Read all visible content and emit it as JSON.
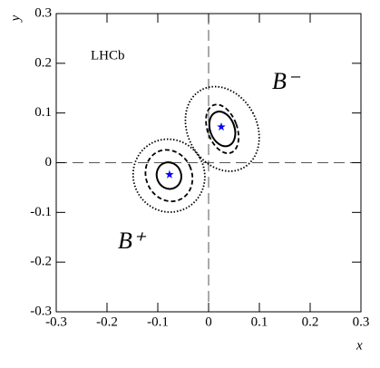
{
  "chart_data": {
    "type": "contour",
    "xlabel": "x",
    "ylabel": "y",
    "xlim": [
      -0.3,
      0.3
    ],
    "ylim": [
      -0.3,
      0.3
    ],
    "xticks": [
      -0.3,
      -0.2,
      -0.1,
      0,
      0.1,
      0.2,
      0.3
    ],
    "yticks": [
      -0.3,
      -0.2,
      -0.1,
      0,
      0.1,
      0.2,
      0.3
    ],
    "annotation": "LHCb",
    "series": [
      {
        "name": "B⁻",
        "color": "#0000ff",
        "x": 0.025,
        "y": 0.072,
        "contours": [
          {
            "style": "solid",
            "x": 0.027,
            "y": 0.068,
            "rx": 0.024,
            "ry": 0.036,
            "angle": -20
          },
          {
            "style": "dashed",
            "x": 0.027,
            "y": 0.068,
            "rx": 0.029,
            "ry": 0.051,
            "angle": -20
          },
          {
            "style": "dotted",
            "x": 0.027,
            "y": 0.068,
            "rx": 0.068,
            "ry": 0.089,
            "angle": -28
          }
        ]
      },
      {
        "name": "B⁺",
        "color": "#0000ff",
        "x": -0.077,
        "y": -0.024,
        "contours": [
          {
            "style": "solid",
            "x": -0.078,
            "y": -0.026,
            "rx": 0.024,
            "ry": 0.027,
            "angle": -20
          },
          {
            "style": "dashed",
            "x": -0.078,
            "y": -0.026,
            "rx": 0.045,
            "ry": 0.053,
            "angle": -25
          },
          {
            "style": "dotted",
            "x": -0.078,
            "y": -0.026,
            "rx": 0.07,
            "ry": 0.074,
            "angle": -30
          }
        ]
      }
    ]
  }
}
